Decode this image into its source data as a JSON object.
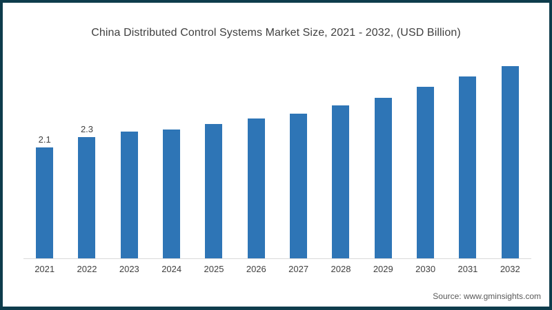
{
  "page": {
    "title": "China Distributed Control Systems Market Size, 2021 - 2032, (USD Billion)",
    "source_note": "Source: www.gminsights.com"
  },
  "colors": {
    "bar": "#2e75b6",
    "page_border": "#0e3c4c",
    "axis_line": "#d9d9d9",
    "title_text": "#3f3f3f",
    "label_text": "#404040",
    "source_text": "#595959"
  },
  "chart_data": {
    "type": "bar",
    "title": "China Distributed Control Systems Market Size, 2021 - 2032, (USD Billion)",
    "categories": [
      "2021",
      "2022",
      "2023",
      "2024",
      "2025",
      "2026",
      "2027",
      "2028",
      "2029",
      "2030",
      "2031",
      "2032"
    ],
    "values": [
      2.1,
      2.3,
      2.4,
      2.45,
      2.55,
      2.65,
      2.75,
      2.9,
      3.05,
      3.25,
      3.45,
      3.65
    ],
    "data_labels": [
      "2.1",
      "2.3",
      "",
      "",
      "",
      "",
      "",
      "",
      "",
      "",
      "",
      ""
    ],
    "xlabel": "",
    "ylabel": "",
    "units": "USD Billion",
    "ylim": [
      0,
      4
    ],
    "grid": false,
    "legend": false,
    "bar_color": "#2e75b6"
  }
}
